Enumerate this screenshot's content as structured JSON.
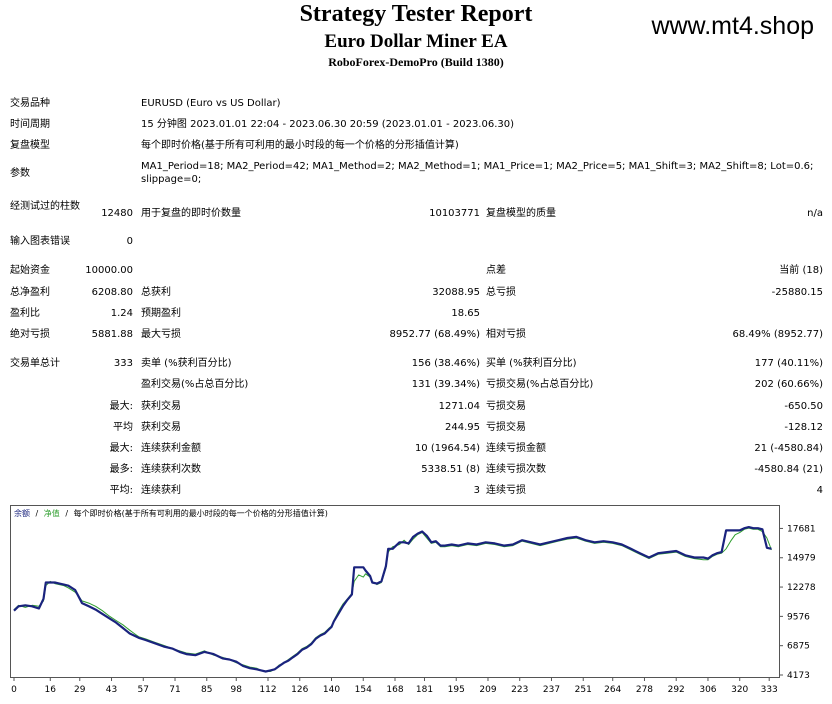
{
  "header": {
    "title": "Strategy Tester Report",
    "subtitle": "Euro Dollar Miner EA",
    "broker": "RoboForex-DemoPro (Build 1380)",
    "site": "www.mt4.shop"
  },
  "info": {
    "symbol_label": "交易品种",
    "symbol_value": "EURUSD (Euro vs US Dollar)",
    "period_label": "时间周期",
    "period_value": "15 分钟图 2023.01.01 22:04 - 2023.06.30 20:59 (2023.01.01 - 2023.06.30)",
    "model_label": "复盘模型",
    "model_value": "每个即时价格(基于所有可利用的最小时段的每一个价格的分形插值计算)",
    "params_label": "参数",
    "params_value": "MA1_Period=18; MA2_Period=42; MA1_Method=2; MA2_Method=1; MA1_Price=1; MA2_Price=5; MA1_Shift=3; MA2_Shift=8; Lot=0.6; slippage=0;"
  },
  "tested": {
    "bars_label": "经测试过的柱数",
    "bars_value": "12480",
    "ticks_label": "用于复盘的即时价数量",
    "ticks_value": "10103771",
    "quality_label": "复盘模型的质量",
    "quality_value": "n/a",
    "errors_label": "输入图表错误",
    "errors_value": "0"
  },
  "stats": {
    "deposit_label": "起始资金",
    "deposit_value": "10000.00",
    "spread_label": "点差",
    "spread_value": "当前 (18)",
    "net_label": "总净盈利",
    "net_value": "6208.80",
    "gross_profit_label": "总获利",
    "gross_profit_value": "32088.95",
    "gross_loss_label": "总亏损",
    "gross_loss_value": "-25880.15",
    "pf_label": "盈利比",
    "pf_value": "1.24",
    "payoff_label": "预期盈利",
    "payoff_value": "18.65",
    "abs_dd_label": "绝对亏损",
    "abs_dd_value": "5881.88",
    "max_dd_label": "最大亏损",
    "max_dd_value": "8952.77 (68.49%)",
    "rel_dd_label": "相对亏损",
    "rel_dd_value": "68.49% (8952.77)"
  },
  "trades": {
    "total_label": "交易单总计",
    "total_value": "333",
    "short_label": "卖单 (%获利百分比)",
    "short_value": "156 (38.46%)",
    "long_label": "买单 (%获利百分比)",
    "long_value": "177 (40.11%)",
    "win_label": "盈利交易(%占总百分比)",
    "win_value": "131 (39.34%)",
    "loss_label": "亏损交易(%占总百分比)",
    "loss_value": "202 (60.66%)",
    "lg_prefix": "最大:",
    "lg_win_label": "获利交易",
    "lg_win_value": "1271.04",
    "lg_loss_label": "亏损交易",
    "lg_loss_value": "-650.50",
    "avg_prefix": "平均",
    "avg_win_label": "获利交易",
    "avg_win_value": "244.95",
    "avg_loss_label": "亏损交易",
    "avg_loss_value": "-128.12",
    "maxc_prefix": "最大:",
    "maxc_win_label": "连续获利金额",
    "maxc_win_value": "10 (1964.54)",
    "maxc_loss_label": "连续亏损金额",
    "maxc_loss_value": "21 (-4580.84)",
    "maxcp_prefix": "最多:",
    "maxcp_win_label": "连续获利次数",
    "maxcp_win_value": "5338.51 (8)",
    "maxcp_loss_label": "连续亏损次数",
    "maxcp_loss_value": "-4580.84 (21)",
    "avgc_prefix": "平均:",
    "avgc_win_label": "连续获利",
    "avgc_win_value": "3",
    "avgc_loss_label": "连续亏损",
    "avgc_loss_value": "4"
  },
  "chart_data": {
    "type": "line",
    "legend_balance": "余额",
    "legend_equity": "净值",
    "legend_model": "每个即时价格(基于所有可利用的最小时段的每一个价格的分形插值计算)",
    "legend_sep": "/",
    "colors": {
      "balance": "#1a237e",
      "equity": "#2e9e2e",
      "text_balance": "#1a237e"
    },
    "xlim": [
      0,
      336
    ],
    "ylim": [
      4173,
      18550
    ],
    "x_ticks": [
      0,
      16,
      29,
      43,
      57,
      71,
      85,
      98,
      112,
      126,
      140,
      154,
      168,
      181,
      195,
      209,
      223,
      237,
      251,
      264,
      278,
      292,
      306,
      320,
      333
    ],
    "y_ticks": [
      17681,
      14979,
      12278,
      9576,
      6875,
      4173
    ],
    "series": [
      {
        "name": "余额",
        "x": [
          0,
          2,
          5,
          8,
          11,
          13,
          14,
          16,
          18,
          20,
          22,
          24,
          27,
          29,
          30,
          33,
          36,
          39,
          42,
          45,
          48,
          51,
          53,
          55,
          58,
          62,
          66,
          70,
          73,
          76,
          80,
          84,
          88,
          92,
          95,
          98,
          101,
          104,
          107,
          109,
          111,
          113,
          115,
          117,
          119,
          121,
          123,
          125,
          127,
          129,
          131,
          133,
          135,
          137,
          139,
          140,
          141,
          143,
          145,
          147,
          149,
          150,
          152,
          154,
          155,
          157,
          158,
          160,
          162,
          164,
          165,
          167,
          170,
          172,
          174,
          176,
          178,
          180,
          182,
          184,
          186,
          188,
          190,
          193,
          196,
          200,
          204,
          208,
          212,
          216,
          220,
          224,
          228,
          232,
          236,
          240,
          244,
          248,
          252,
          256,
          260,
          264,
          268,
          272,
          276,
          280,
          284,
          288,
          292,
          296,
          300,
          304,
          306,
          308,
          310,
          312,
          314,
          316,
          318,
          320,
          322,
          324,
          326,
          328,
          330,
          332,
          334
        ],
        "y": [
          10100,
          10500,
          10600,
          10500,
          10300,
          11200,
          12700,
          12700,
          12700,
          12600,
          12500,
          12400,
          12000,
          11200,
          10800,
          10500,
          10200,
          9800,
          9400,
          9000,
          8500,
          8000,
          7800,
          7600,
          7400,
          7100,
          6800,
          6600,
          6300,
          6100,
          6000,
          6300,
          6100,
          5700,
          5600,
          5400,
          5000,
          4800,
          4700,
          4600,
          4500,
          4600,
          4700,
          5000,
          5300,
          5500,
          5800,
          6100,
          6500,
          6700,
          7000,
          7500,
          7800,
          8000,
          8400,
          8600,
          9100,
          9800,
          10500,
          11100,
          11600,
          14100,
          14100,
          14100,
          13800,
          13300,
          12700,
          12600,
          12800,
          14200,
          15800,
          15800,
          16400,
          16400,
          16300,
          16900,
          17200,
          17400,
          17000,
          16400,
          16500,
          16100,
          16100,
          16200,
          16100,
          16300,
          16200,
          16400,
          16300,
          16100,
          16200,
          16600,
          16400,
          16200,
          16400,
          16600,
          16800,
          16900,
          16600,
          16400,
          16500,
          16400,
          16200,
          15800,
          15400,
          15000,
          15400,
          15500,
          15600,
          15200,
          15000,
          15000,
          14900,
          15200,
          15400,
          15500,
          17500,
          17500,
          17500,
          17500,
          17700,
          17800,
          17700,
          17700,
          17600,
          15900,
          15800
        ]
      },
      {
        "name": "净值",
        "x": [
          0,
          2,
          5,
          8,
          11,
          13,
          14,
          16,
          18,
          20,
          22,
          24,
          27,
          29,
          30,
          33,
          36,
          39,
          42,
          45,
          48,
          51,
          53,
          55,
          58,
          62,
          66,
          70,
          73,
          76,
          80,
          84,
          88,
          92,
          95,
          98,
          101,
          104,
          107,
          109,
          111,
          113,
          115,
          117,
          119,
          121,
          123,
          125,
          127,
          129,
          131,
          133,
          135,
          137,
          139,
          140,
          141,
          143,
          145,
          147,
          149,
          150,
          152,
          154,
          155,
          157,
          158,
          160,
          162,
          164,
          165,
          167,
          170,
          172,
          174,
          176,
          178,
          180,
          182,
          184,
          186,
          188,
          190,
          193,
          196,
          200,
          204,
          208,
          212,
          216,
          220,
          224,
          228,
          232,
          236,
          240,
          244,
          248,
          252,
          256,
          260,
          264,
          268,
          272,
          276,
          280,
          284,
          288,
          292,
          296,
          300,
          304,
          306,
          308,
          310,
          312,
          314,
          316,
          318,
          320,
          322,
          324,
          326,
          328,
          330,
          332,
          334
        ],
        "y": [
          10200,
          10600,
          10400,
          10600,
          10500,
          11000,
          12400,
          12800,
          12600,
          12500,
          12400,
          12200,
          11800,
          11300,
          11000,
          10800,
          10500,
          10100,
          9600,
          9200,
          8800,
          8300,
          8000,
          7700,
          7500,
          7200,
          6900,
          6600,
          6400,
          6200,
          6100,
          6400,
          6000,
          5800,
          5600,
          5300,
          5100,
          4900,
          4800,
          4600,
          4500,
          4500,
          4700,
          5100,
          5300,
          5600,
          5900,
          6200,
          6600,
          6800,
          7100,
          7600,
          7900,
          8100,
          8500,
          8700,
          9200,
          10000,
          10700,
          11200,
          11700,
          12800,
          13400,
          13200,
          13500,
          13200,
          12800,
          12500,
          12700,
          14000,
          15500,
          16000,
          16200,
          16600,
          16200,
          16700,
          17100,
          17300,
          16800,
          16300,
          16400,
          16000,
          16000,
          16100,
          16000,
          16200,
          16100,
          16300,
          16200,
          16000,
          16100,
          16500,
          16300,
          16100,
          16300,
          16500,
          16700,
          16800,
          16500,
          16300,
          16400,
          16300,
          16100,
          15700,
          15300,
          14900,
          15300,
          15400,
          15500,
          15100,
          14900,
          14800,
          14800,
          15100,
          15300,
          15400,
          15800,
          16500,
          17100,
          17300,
          17600,
          17700,
          17600,
          17600,
          17400,
          16800,
          15700
        ]
      }
    ]
  }
}
